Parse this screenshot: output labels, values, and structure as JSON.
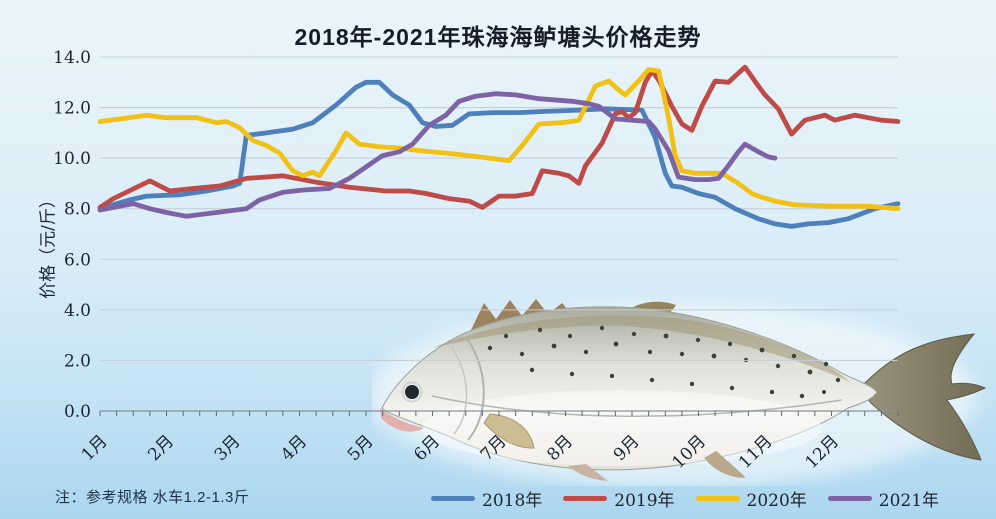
{
  "note": "注：参考规格  水车1.2-1.3斤",
  "chart_data": {
    "type": "line",
    "title": "2018年-2021年珠海海鲈塘头价格走势",
    "ylabel": "价格（元/斤）",
    "xlabel": "",
    "x_tick_labels": [
      "1月",
      "2月",
      "3月",
      "4月",
      "5月",
      "6月",
      "7月",
      "8月",
      "9月",
      "10月",
      "11月",
      "12月"
    ],
    "y_ticks": [
      0,
      2,
      4,
      6,
      8,
      10,
      12,
      14
    ],
    "y_tick_labels": [
      "0.0",
      "2.0",
      "4.0",
      "6.0",
      "8.0",
      "10.0",
      "12.0",
      "14.0"
    ],
    "ylim": [
      0,
      14
    ],
    "xlim": [
      1,
      13
    ],
    "grid": true,
    "legend_position": "bottom",
    "x_unit": "month (fractional = weekly points)",
    "y_unit": "元/斤",
    "series": [
      {
        "name": "2018年",
        "color": "#4E80BC",
        "points": [
          [
            1.0,
            8.0
          ],
          [
            1.25,
            8.2
          ],
          [
            1.45,
            8.35
          ],
          [
            1.7,
            8.5
          ],
          [
            2.2,
            8.55
          ],
          [
            2.6,
            8.7
          ],
          [
            3.0,
            8.9
          ],
          [
            3.1,
            9.0
          ],
          [
            3.2,
            10.9
          ],
          [
            3.5,
            11.0
          ],
          [
            3.9,
            11.15
          ],
          [
            4.2,
            11.4
          ],
          [
            4.55,
            12.1
          ],
          [
            4.85,
            12.8
          ],
          [
            5.0,
            13.0
          ],
          [
            5.2,
            13.0
          ],
          [
            5.4,
            12.5
          ],
          [
            5.65,
            12.1
          ],
          [
            5.85,
            11.4
          ],
          [
            6.05,
            11.25
          ],
          [
            6.3,
            11.3
          ],
          [
            6.55,
            11.75
          ],
          [
            6.9,
            11.8
          ],
          [
            7.3,
            11.8
          ],
          [
            7.7,
            11.85
          ],
          [
            8.2,
            11.9
          ],
          [
            8.6,
            11.95
          ],
          [
            9.15,
            11.9
          ],
          [
            9.35,
            10.8
          ],
          [
            9.5,
            9.4
          ],
          [
            9.6,
            8.9
          ],
          [
            9.75,
            8.85
          ],
          [
            10.0,
            8.6
          ],
          [
            10.25,
            8.45
          ],
          [
            10.55,
            8.0
          ],
          [
            10.9,
            7.6
          ],
          [
            11.15,
            7.4
          ],
          [
            11.4,
            7.3
          ],
          [
            11.65,
            7.4
          ],
          [
            11.95,
            7.45
          ],
          [
            12.25,
            7.6
          ],
          [
            12.65,
            8.0
          ],
          [
            13.0,
            8.2
          ]
        ]
      },
      {
        "name": "2019年",
        "color": "#BE4B48",
        "points": [
          [
            1.0,
            8.05
          ],
          [
            1.2,
            8.4
          ],
          [
            1.75,
            9.1
          ],
          [
            2.05,
            8.7
          ],
          [
            2.4,
            8.8
          ],
          [
            2.8,
            8.9
          ],
          [
            3.2,
            9.2
          ],
          [
            3.75,
            9.3
          ],
          [
            4.25,
            9.05
          ],
          [
            4.75,
            8.85
          ],
          [
            5.3,
            8.7
          ],
          [
            5.65,
            8.7
          ],
          [
            5.9,
            8.6
          ],
          [
            6.25,
            8.4
          ],
          [
            6.55,
            8.3
          ],
          [
            6.75,
            8.05
          ],
          [
            7.0,
            8.5
          ],
          [
            7.25,
            8.5
          ],
          [
            7.5,
            8.6
          ],
          [
            7.65,
            9.5
          ],
          [
            7.9,
            9.4
          ],
          [
            8.05,
            9.3
          ],
          [
            8.2,
            9.0
          ],
          [
            8.3,
            9.7
          ],
          [
            8.55,
            10.6
          ],
          [
            8.75,
            11.75
          ],
          [
            8.85,
            11.85
          ],
          [
            8.95,
            11.6
          ],
          [
            9.05,
            11.8
          ],
          [
            9.2,
            13.0
          ],
          [
            9.3,
            13.45
          ],
          [
            9.4,
            13.1
          ],
          [
            9.6,
            12.05
          ],
          [
            9.75,
            11.35
          ],
          [
            9.9,
            11.1
          ],
          [
            10.05,
            12.05
          ],
          [
            10.25,
            13.05
          ],
          [
            10.45,
            13.0
          ],
          [
            10.7,
            13.6
          ],
          [
            10.9,
            12.85
          ],
          [
            11.0,
            12.5
          ],
          [
            11.2,
            11.95
          ],
          [
            11.4,
            10.95
          ],
          [
            11.6,
            11.5
          ],
          [
            11.75,
            11.6
          ],
          [
            11.9,
            11.7
          ],
          [
            12.05,
            11.5
          ],
          [
            12.2,
            11.6
          ],
          [
            12.35,
            11.7
          ],
          [
            12.55,
            11.6
          ],
          [
            12.75,
            11.5
          ],
          [
            13.0,
            11.45
          ]
        ]
      },
      {
        "name": "2020年",
        "color": "#F1C116",
        "points": [
          [
            1.0,
            11.45
          ],
          [
            1.3,
            11.55
          ],
          [
            1.7,
            11.7
          ],
          [
            2.0,
            11.6
          ],
          [
            2.45,
            11.6
          ],
          [
            2.75,
            11.4
          ],
          [
            2.9,
            11.45
          ],
          [
            3.1,
            11.2
          ],
          [
            3.3,
            10.7
          ],
          [
            3.5,
            10.5
          ],
          [
            3.7,
            10.2
          ],
          [
            3.9,
            9.5
          ],
          [
            4.05,
            9.3
          ],
          [
            4.2,
            9.45
          ],
          [
            4.3,
            9.3
          ],
          [
            4.55,
            10.3
          ],
          [
            4.7,
            11.0
          ],
          [
            4.9,
            10.55
          ],
          [
            5.2,
            10.45
          ],
          [
            5.5,
            10.4
          ],
          [
            5.8,
            10.3
          ],
          [
            6.2,
            10.2
          ],
          [
            6.55,
            10.1
          ],
          [
            7.0,
            9.95
          ],
          [
            7.15,
            9.9
          ],
          [
            7.35,
            10.5
          ],
          [
            7.6,
            11.35
          ],
          [
            7.95,
            11.4
          ],
          [
            8.2,
            11.5
          ],
          [
            8.45,
            12.85
          ],
          [
            8.65,
            13.05
          ],
          [
            8.8,
            12.7
          ],
          [
            8.9,
            12.5
          ],
          [
            9.1,
            13.05
          ],
          [
            9.25,
            13.5
          ],
          [
            9.4,
            13.45
          ],
          [
            9.55,
            11.6
          ],
          [
            9.65,
            10.1
          ],
          [
            9.75,
            9.5
          ],
          [
            9.95,
            9.4
          ],
          [
            10.35,
            9.4
          ],
          [
            10.6,
            9.0
          ],
          [
            10.8,
            8.6
          ],
          [
            10.95,
            8.45
          ],
          [
            11.15,
            8.3
          ],
          [
            11.45,
            8.15
          ],
          [
            12.0,
            8.1
          ],
          [
            12.55,
            8.1
          ],
          [
            13.0,
            8.0
          ]
        ]
      },
      {
        "name": "2021年",
        "color": "#7D63A5",
        "points": [
          [
            1.0,
            7.95
          ],
          [
            1.3,
            8.1
          ],
          [
            1.5,
            8.2
          ],
          [
            1.75,
            8.0
          ],
          [
            2.0,
            7.85
          ],
          [
            2.3,
            7.7
          ],
          [
            2.6,
            7.8
          ],
          [
            2.9,
            7.9
          ],
          [
            3.2,
            8.0
          ],
          [
            3.4,
            8.35
          ],
          [
            3.75,
            8.65
          ],
          [
            4.1,
            8.75
          ],
          [
            4.45,
            8.8
          ],
          [
            4.75,
            9.2
          ],
          [
            5.0,
            9.65
          ],
          [
            5.25,
            10.1
          ],
          [
            5.5,
            10.25
          ],
          [
            5.7,
            10.55
          ],
          [
            5.95,
            11.3
          ],
          [
            6.2,
            11.7
          ],
          [
            6.4,
            12.25
          ],
          [
            6.65,
            12.45
          ],
          [
            6.95,
            12.55
          ],
          [
            7.25,
            12.5
          ],
          [
            7.6,
            12.35
          ],
          [
            8.1,
            12.25
          ],
          [
            8.35,
            12.15
          ],
          [
            8.5,
            12.05
          ],
          [
            8.75,
            11.55
          ],
          [
            9.0,
            11.5
          ],
          [
            9.25,
            11.45
          ],
          [
            9.35,
            11.15
          ],
          [
            9.55,
            10.3
          ],
          [
            9.7,
            9.25
          ],
          [
            9.95,
            9.15
          ],
          [
            10.15,
            9.15
          ],
          [
            10.3,
            9.2
          ],
          [
            10.45,
            9.7
          ],
          [
            10.6,
            10.25
          ],
          [
            10.7,
            10.55
          ],
          [
            10.9,
            10.25
          ],
          [
            11.05,
            10.05
          ],
          [
            11.15,
            10.0
          ]
        ]
      }
    ]
  }
}
